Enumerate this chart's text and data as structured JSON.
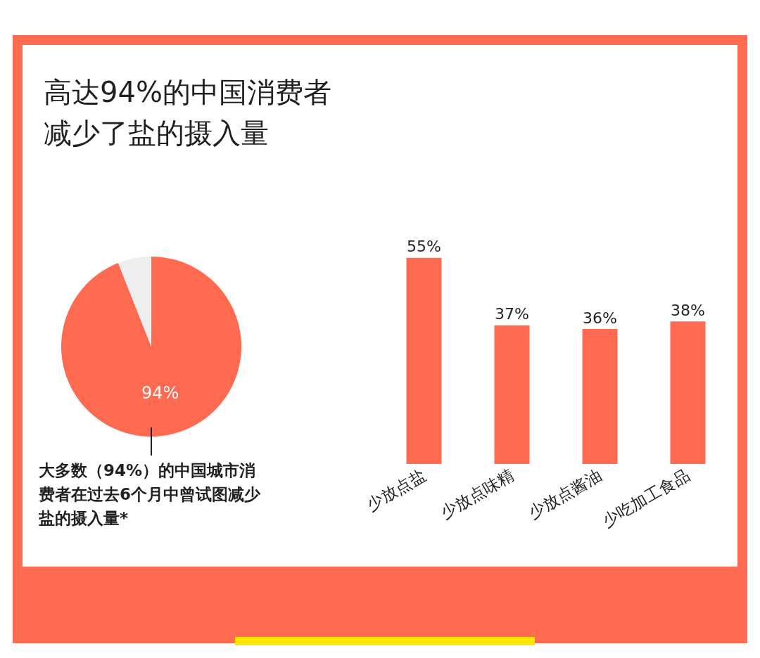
{
  "chart_data": [
    {
      "type": "pie",
      "title": "高达94%的中国消费者减少了盐的摄入量",
      "categories": [
        null,
        null
      ],
      "values": [
        94,
        6
      ],
      "colors": [
        "#ff6a50",
        "#eeeeee"
      ],
      "value_labels": [
        "94%",
        null
      ],
      "annotations": [
        "大多数（94%）的中国城市消费者在过去6个月中曾试图减少盐的摄入量*"
      ]
    },
    {
      "type": "bar",
      "categories": [
        "少放点盐",
        "少放点味精",
        "少放点酱油",
        "少吃加工食品"
      ],
      "values": [
        55,
        37,
        36,
        38
      ],
      "color": "#ff6a50",
      "value_labels": [
        "55%",
        "37%",
        "36%",
        "38%"
      ]
    }
  ]
}
